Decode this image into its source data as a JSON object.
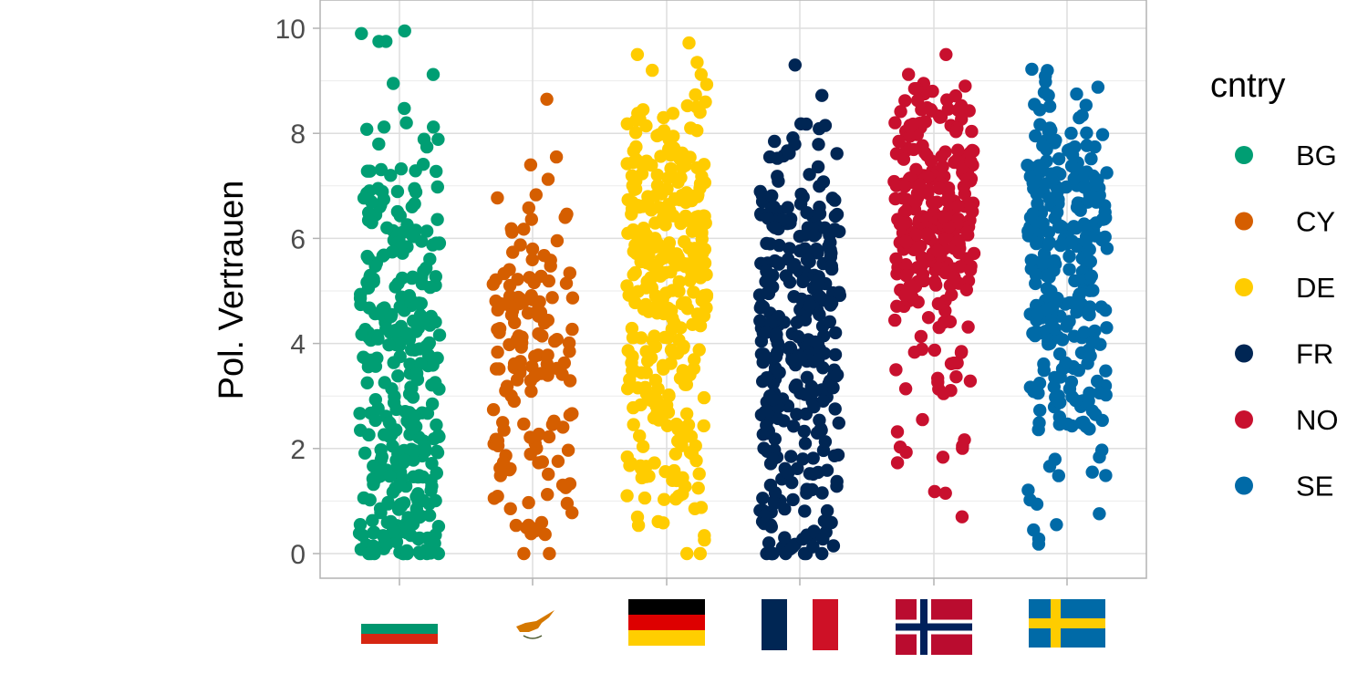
{
  "chart_data": {
    "type": "scatter",
    "ylabel": "Pol. Vertrauen",
    "xlabel": "",
    "ylim": [
      -0.4,
      10.3
    ],
    "yticks": [
      "0",
      "2",
      "4",
      "6",
      "8",
      "10"
    ],
    "grid": true,
    "legend": {
      "title": "cntry",
      "position": "right"
    },
    "categories": [
      "BG",
      "CY",
      "DE",
      "FR",
      "NO",
      "SE"
    ],
    "x_axis_tick_labels": "country flags",
    "series": [
      {
        "name": "BG",
        "color": "#009E73",
        "flag": "flag-bulgaria",
        "n": 320,
        "outliers": [
          9.9,
          9.95,
          9.75,
          9.75,
          8.95,
          9.12,
          8.12,
          8.12,
          7.28,
          7.28,
          7.2,
          6.95,
          6.6
        ]
      },
      {
        "name": "CY",
        "color": "#D55E00",
        "flag": "flag-cyprus",
        "n": 150,
        "outliers": [
          8.65,
          7.55,
          7.4,
          6.58,
          6.42,
          6.12
        ]
      },
      {
        "name": "DE",
        "color": "#FFCC00",
        "flag": "flag-germany",
        "n": 330,
        "outliers": [
          9.72,
          9.5,
          9.35,
          9.2,
          9.12,
          8.93,
          8.5,
          8.45,
          8.4,
          8.1
        ]
      },
      {
        "name": "FR",
        "color": "#002654",
        "flag": "flag-france",
        "n": 320,
        "outliers": [
          9.3,
          8.72,
          8.15,
          7.62,
          7.55
        ]
      },
      {
        "name": "NO",
        "color": "#C8102E",
        "flag": "flag-norway",
        "n": 270,
        "outliers": [
          9.5,
          8.95,
          8.9,
          8.85,
          8.85,
          8.8,
          0.7,
          1.15,
          1.18
        ]
      },
      {
        "name": "SE",
        "color": "#006AA7",
        "flag": "flag-sweden",
        "n": 290,
        "outliers": [
          9.22,
          8.78,
          8.72,
          8.55,
          0.18,
          0.28,
          0.45,
          0.55
        ]
      }
    ]
  }
}
